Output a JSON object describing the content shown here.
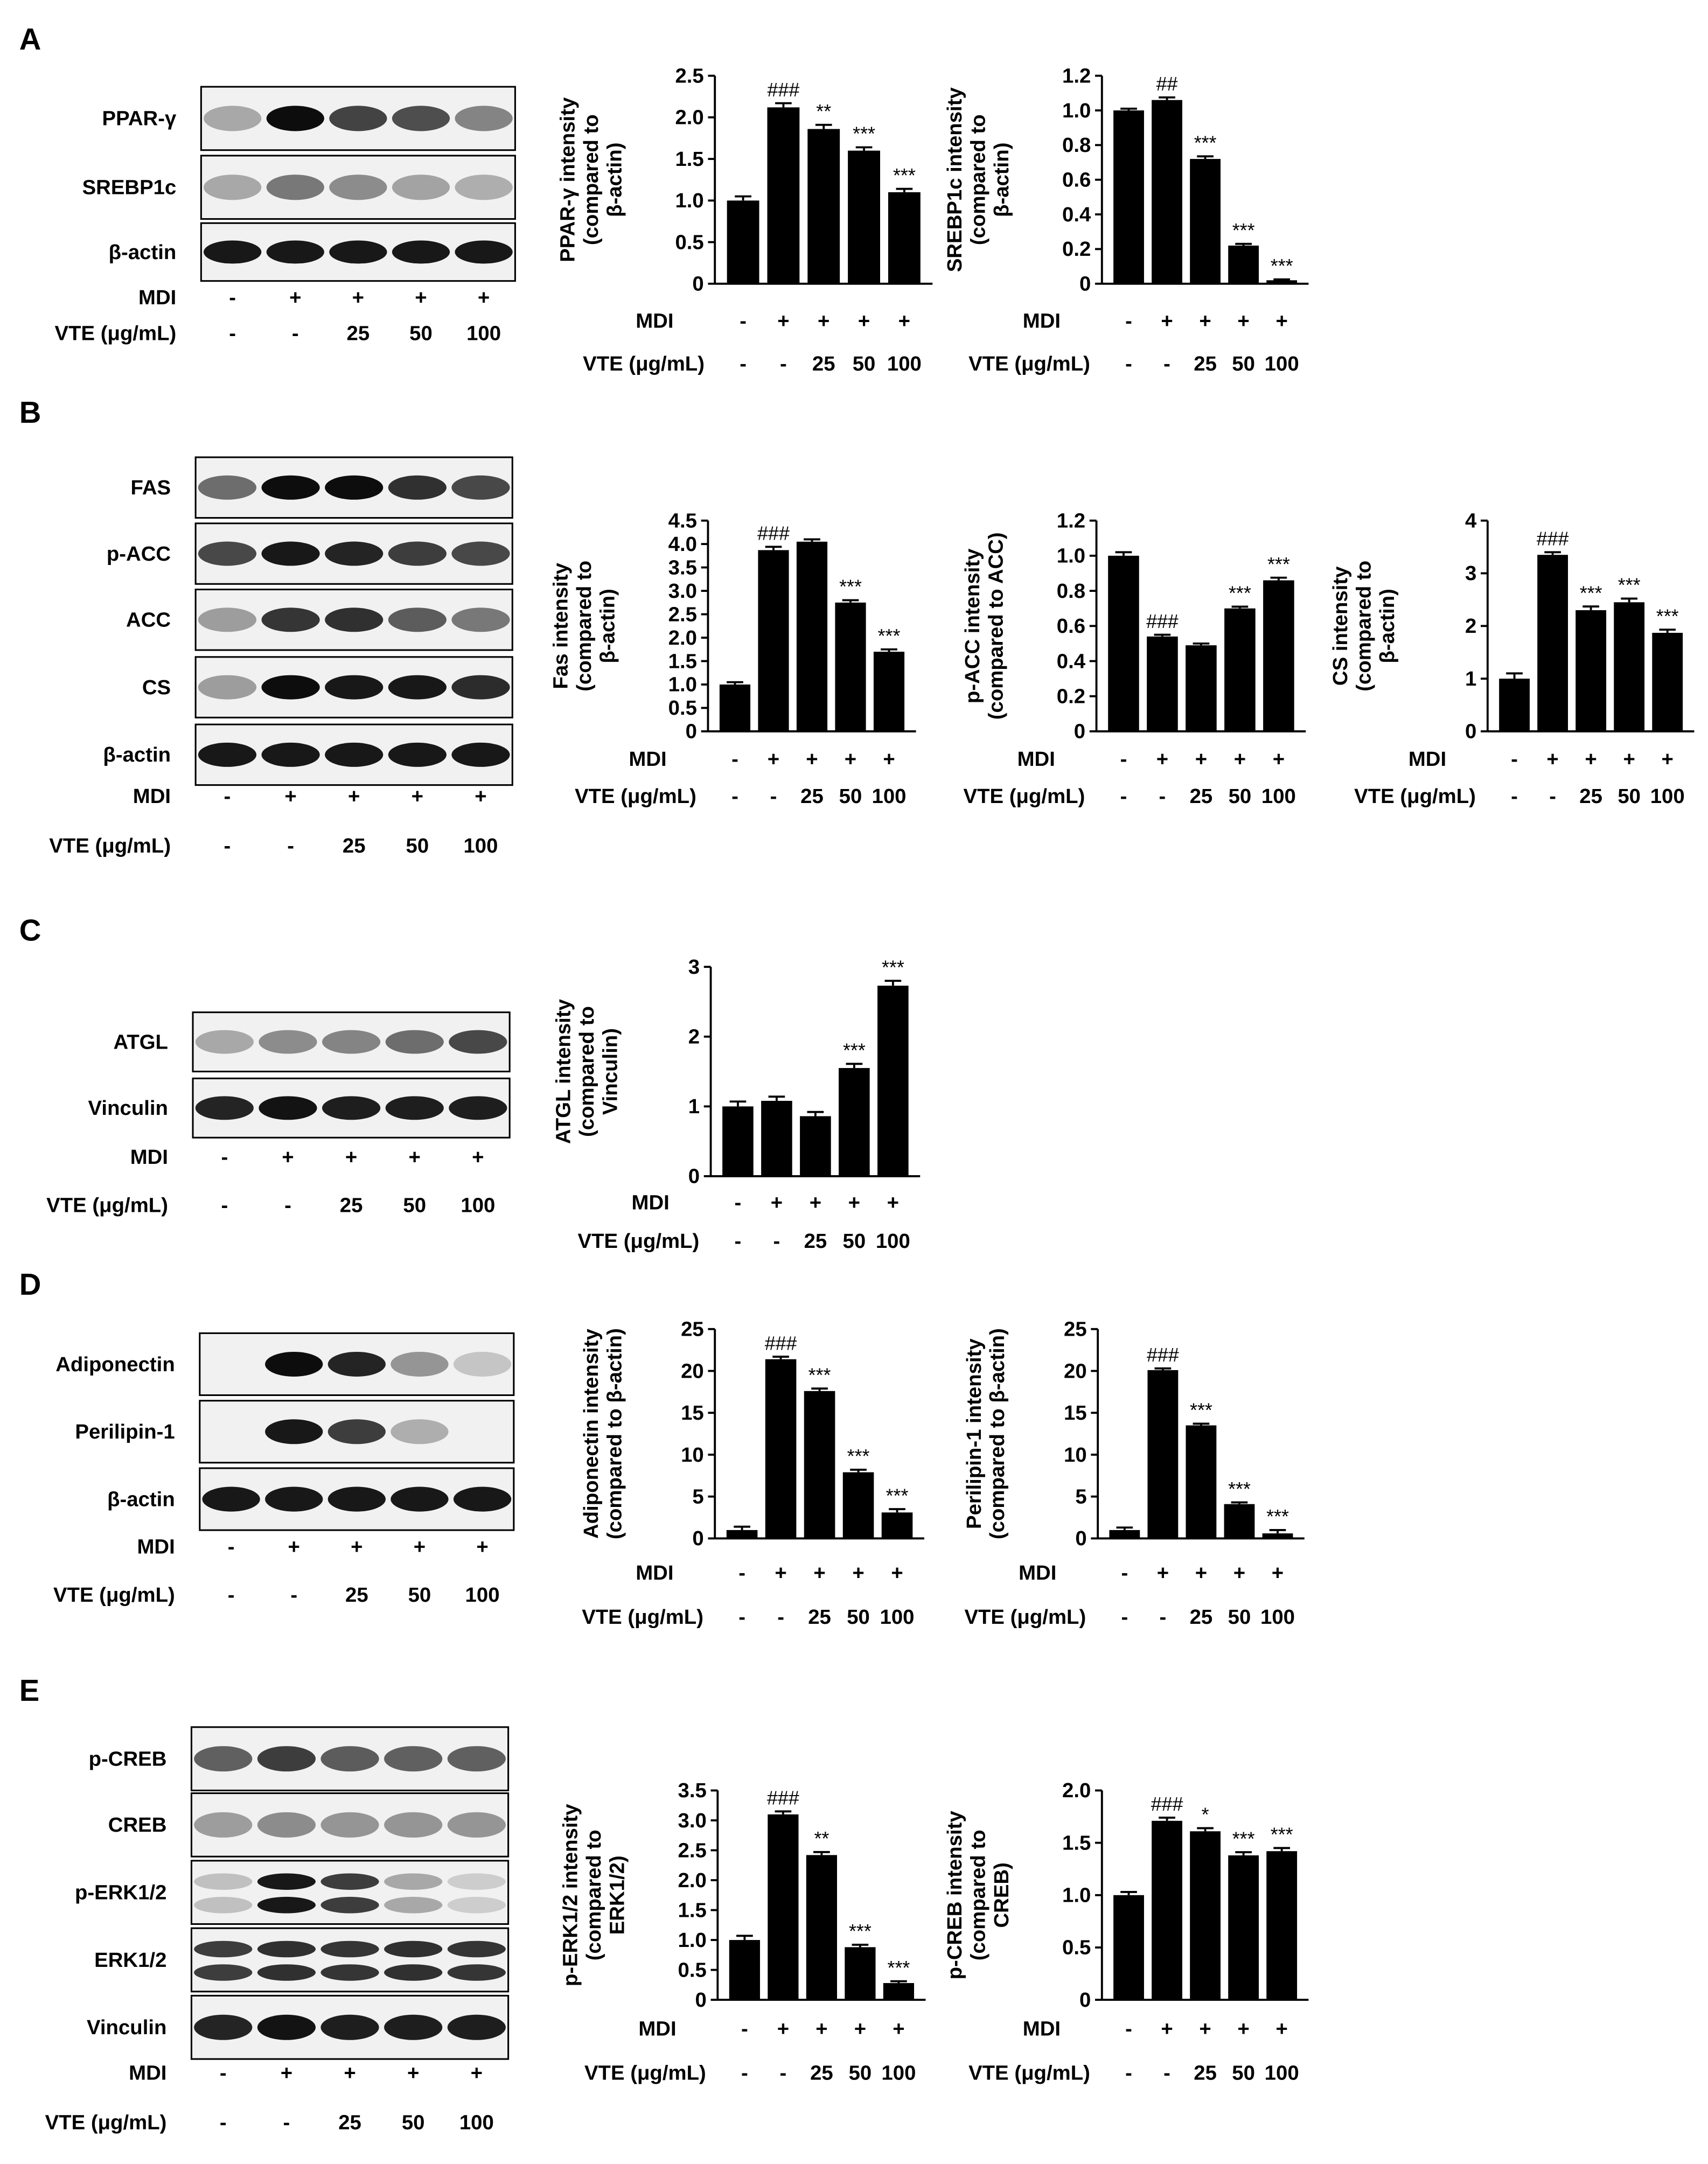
{
  "conditions": {
    "mdi_label": "MDI",
    "vte_label": "VTE (μg/mL)",
    "mdi": [
      "-",
      "+",
      "+",
      "+",
      "+"
    ],
    "vte": [
      "-",
      "-",
      "25",
      "50",
      "100"
    ]
  },
  "panels": [
    {
      "letter": "A",
      "blot_bands": [
        "PPAR-γ",
        "SREBP1c",
        "β-actin"
      ]
    },
    {
      "letter": "B",
      "blot_bands": [
        "FAS",
        "p-ACC",
        "ACC",
        "CS",
        "β-actin"
      ]
    },
    {
      "letter": "C",
      "blot_bands": [
        "ATGL",
        "Vinculin"
      ]
    },
    {
      "letter": "D",
      "blot_bands": [
        "Adiponectin",
        "Perilipin-1",
        "β-actin"
      ]
    },
    {
      "letter": "E",
      "blot_bands": [
        "p-CREB",
        "CREB",
        "p-ERK1/2",
        "ERK1/2",
        "Vinculin"
      ]
    }
  ],
  "chart_data": [
    {
      "panel": "A",
      "type": "bar",
      "ylabel": [
        "PPAR-γ intensity",
        "(compared to",
        "β-actin)"
      ],
      "ylim": [
        0,
        2.5
      ],
      "yticks": [
        "0",
        "0.5",
        "1.0",
        "1.5",
        "2.0",
        "2.5"
      ],
      "values": [
        1.0,
        2.12,
        1.86,
        1.6,
        1.1
      ],
      "errors": [
        0.05,
        0.05,
        0.05,
        0.04,
        0.04
      ],
      "annotations": [
        "",
        "###",
        "**",
        "***",
        "***"
      ]
    },
    {
      "panel": "A",
      "type": "bar",
      "ylabel": [
        "SREBP1c intensity",
        "(compared to",
        "β-actin)"
      ],
      "ylim": [
        0,
        1.2
      ],
      "yticks": [
        "0",
        "0.2",
        "0.4",
        "0.6",
        "0.8",
        "1.0",
        "1.2"
      ],
      "values": [
        1.0,
        1.06,
        0.72,
        0.22,
        0.02
      ],
      "errors": [
        0.01,
        0.015,
        0.015,
        0.01,
        0.005
      ],
      "annotations": [
        "",
        "##",
        "***",
        "***",
        "***"
      ]
    },
    {
      "panel": "B",
      "type": "bar",
      "ylabel": [
        "Fas intensity",
        "(compared to",
        "β-actin)"
      ],
      "ylim": [
        0,
        4.5
      ],
      "yticks": [
        "0",
        "0.5",
        "1.0",
        "1.5",
        "2.0",
        "2.5",
        "3.0",
        "3.5",
        "4.0",
        "4.5"
      ],
      "values": [
        1.0,
        3.87,
        4.05,
        2.75,
        1.7
      ],
      "errors": [
        0.05,
        0.07,
        0.05,
        0.05,
        0.05
      ],
      "annotations": [
        "",
        "###",
        "",
        "***",
        "***"
      ]
    },
    {
      "panel": "B",
      "type": "bar",
      "ylabel": [
        "p-ACC intensity",
        "(compared to ACC)"
      ],
      "ylim": [
        0,
        1.2
      ],
      "yticks": [
        "0",
        "0.2",
        "0.4",
        "0.6",
        "0.8",
        "1.0",
        "1.2"
      ],
      "values": [
        1.0,
        0.54,
        0.49,
        0.7,
        0.86
      ],
      "errors": [
        0.02,
        0.01,
        0.01,
        0.01,
        0.015
      ],
      "annotations": [
        "",
        "###",
        "",
        "***",
        "***"
      ]
    },
    {
      "panel": "B",
      "type": "bar",
      "ylabel": [
        "CS intensity",
        "(compared to",
        "β-actin)"
      ],
      "ylim": [
        0,
        4
      ],
      "yticks": [
        "0",
        "1",
        "2",
        "3",
        "4"
      ],
      "values": [
        1.0,
        3.35,
        2.3,
        2.45,
        1.87
      ],
      "errors": [
        0.1,
        0.05,
        0.07,
        0.07,
        0.06
      ],
      "annotations": [
        "",
        "###",
        "***",
        "***",
        "***"
      ]
    },
    {
      "panel": "C",
      "type": "bar",
      "ylabel": [
        "ATGL intensity",
        "(compared to",
        "Vinculin)"
      ],
      "ylim": [
        0,
        3
      ],
      "yticks": [
        "0",
        "1",
        "2",
        "3"
      ],
      "values": [
        1.0,
        1.08,
        0.86,
        1.55,
        2.73
      ],
      "errors": [
        0.07,
        0.06,
        0.06,
        0.06,
        0.07
      ],
      "annotations": [
        "",
        "",
        "",
        "***",
        "***"
      ]
    },
    {
      "panel": "D",
      "type": "bar",
      "ylabel": [
        "Adiponectin intensity",
        "(compared to β-actin)"
      ],
      "ylim": [
        0,
        25
      ],
      "yticks": [
        "0",
        "5",
        "10",
        "15",
        "20",
        "25"
      ],
      "values": [
        1.0,
        21.4,
        17.6,
        7.9,
        3.1
      ],
      "errors": [
        0.4,
        0.3,
        0.3,
        0.3,
        0.4
      ],
      "annotations": [
        "",
        "###",
        "***",
        "***",
        "***"
      ]
    },
    {
      "panel": "D",
      "type": "bar",
      "ylabel": [
        "Perilipin-1 intensity",
        "(compared to β-actin)"
      ],
      "ylim": [
        0,
        25
      ],
      "yticks": [
        "0",
        "5",
        "10",
        "15",
        "20",
        "25"
      ],
      "values": [
        1.0,
        20.1,
        13.5,
        4.1,
        0.6
      ],
      "errors": [
        0.3,
        0.2,
        0.2,
        0.2,
        0.4
      ],
      "annotations": [
        "",
        "###",
        "***",
        "***",
        "***"
      ]
    },
    {
      "panel": "E",
      "type": "bar",
      "ylabel": [
        "p-ERK1/2 intensity",
        "(compared to",
        "ERK1/2)"
      ],
      "ylim": [
        0,
        3.5
      ],
      "yticks": [
        "0",
        "0.5",
        "1.0",
        "1.5",
        "2.0",
        "2.5",
        "3.0",
        "3.5"
      ],
      "values": [
        1.0,
        3.1,
        2.42,
        0.88,
        0.28
      ],
      "errors": [
        0.07,
        0.05,
        0.05,
        0.04,
        0.03
      ],
      "annotations": [
        "",
        "###",
        "**",
        "***",
        "***"
      ]
    },
    {
      "panel": "E",
      "type": "bar",
      "ylabel": [
        "p-CREB intensity",
        "(compared to",
        "CREB)"
      ],
      "ylim": [
        0,
        2.0
      ],
      "yticks": [
        "0",
        "0.5",
        "1.0",
        "1.5",
        "2.0"
      ],
      "values": [
        1.0,
        1.71,
        1.61,
        1.38,
        1.42
      ],
      "errors": [
        0.03,
        0.03,
        0.03,
        0.03,
        0.03
      ],
      "annotations": [
        "",
        "###",
        "*",
        "***",
        "***"
      ]
    }
  ],
  "blot_intensities": {
    "PPAR-γ": [
      0.3,
      0.95,
      0.72,
      0.68,
      0.45
    ],
    "SREBP1c": [
      0.3,
      0.5,
      0.42,
      0.32,
      0.28
    ],
    "FAS": [
      0.55,
      0.95,
      0.95,
      0.8,
      0.7
    ],
    "p-ACC": [
      0.7,
      0.9,
      0.85,
      0.75,
      0.7
    ],
    "ACC": [
      0.35,
      0.78,
      0.8,
      0.62,
      0.5
    ],
    "CS": [
      0.35,
      0.95,
      0.9,
      0.9,
      0.82
    ],
    "ATGL": [
      0.3,
      0.42,
      0.45,
      0.55,
      0.7
    ],
    "Adiponectin": [
      0.0,
      0.95,
      0.85,
      0.38,
      0.18
    ],
    "Perilipin-1": [
      0.0,
      0.9,
      0.75,
      0.28,
      0.0
    ],
    "p-CREB": [
      0.6,
      0.75,
      0.62,
      0.6,
      0.6
    ],
    "CREB": [
      0.35,
      0.42,
      0.38,
      0.38,
      0.38
    ],
    "p-ERK1/2": [
      0.2,
      0.9,
      0.75,
      0.3,
      0.15
    ],
    "ERK1/2": [
      0.75,
      0.8,
      0.78,
      0.8,
      0.78
    ],
    "Vinculin": [
      0.85,
      0.92,
      0.88,
      0.88,
      0.88
    ],
    "β-actin": [
      0.9,
      0.9,
      0.9,
      0.9,
      0.9
    ]
  }
}
